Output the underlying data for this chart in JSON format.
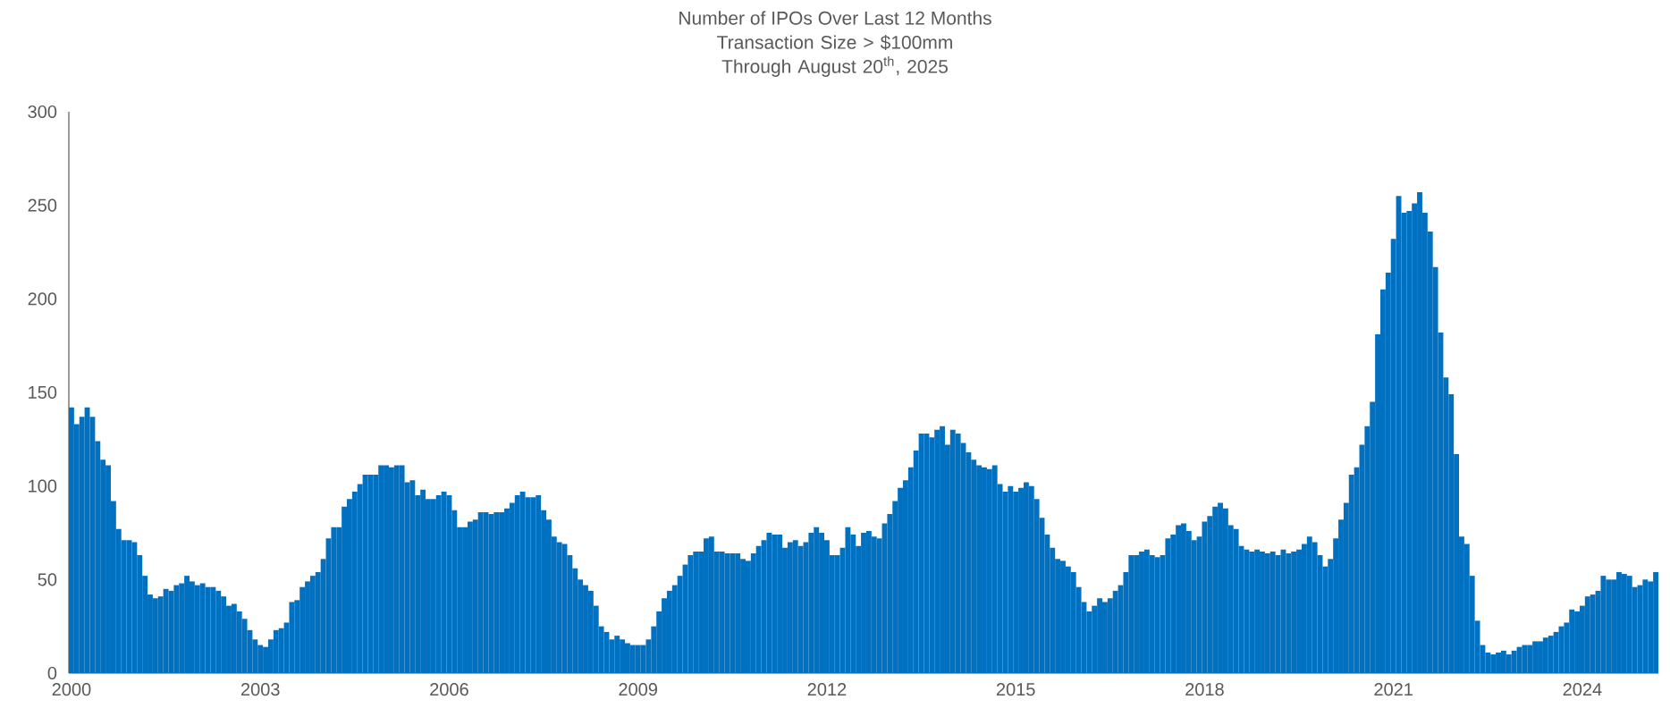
{
  "chart_data": {
    "type": "bar",
    "title": "Number of IPOs Over Last 12 Months",
    "subtitle": "Transaction Size > $100mm Through August 20$^{th}$, 2025",
    "color": "#0070c0",
    "ylim": [
      0,
      300
    ],
    "yticks": [
      0,
      50,
      100,
      150,
      200,
      250,
      300
    ],
    "categories": [
      "2000",
      null,
      null,
      null,
      null,
      null,
      null,
      null,
      null,
      null,
      null,
      null,
      null,
      null,
      null,
      null,
      null,
      null,
      null,
      null,
      null,
      null,
      null,
      null,
      null,
      null,
      null,
      null,
      null,
      null,
      null,
      null,
      null,
      null,
      null,
      null,
      "2003",
      null,
      null,
      null,
      null,
      null,
      null,
      null,
      null,
      null,
      null,
      null,
      null,
      null,
      null,
      null,
      null,
      null,
      null,
      null,
      null,
      null,
      null,
      null,
      null,
      null,
      null,
      null,
      null,
      null,
      null,
      null,
      null,
      null,
      null,
      null,
      "2006",
      null,
      null,
      null,
      null,
      null,
      null,
      null,
      null,
      null,
      null,
      null,
      null,
      null,
      null,
      null,
      null,
      null,
      null,
      null,
      null,
      null,
      null,
      null,
      null,
      null,
      null,
      null,
      null,
      null,
      null,
      null,
      null,
      null,
      null,
      null,
      "2009",
      null,
      null,
      null,
      null,
      null,
      null,
      null,
      null,
      null,
      null,
      null,
      null,
      null,
      null,
      null,
      null,
      null,
      null,
      null,
      null,
      null,
      null,
      null,
      null,
      null,
      null,
      null,
      null,
      null,
      null,
      null,
      null,
      null,
      null,
      null,
      "2012",
      null,
      null,
      null,
      null,
      null,
      null,
      null,
      null,
      null,
      null,
      null,
      null,
      null,
      null,
      null,
      null,
      null,
      null,
      null,
      null,
      null,
      null,
      null,
      null,
      null,
      null,
      null,
      null,
      null,
      null,
      null,
      null,
      null,
      null,
      null,
      "2015",
      null,
      null,
      null,
      null,
      null,
      null,
      null,
      null,
      null,
      null,
      null,
      null,
      null,
      null,
      null,
      null,
      null,
      null,
      null,
      null,
      null,
      null,
      null,
      null,
      null,
      null,
      null,
      null,
      null,
      null,
      null,
      null,
      null,
      null,
      null,
      "2018",
      null,
      null,
      null,
      null,
      null,
      null,
      null,
      null,
      null,
      null,
      null,
      null,
      null,
      null,
      null,
      null,
      null,
      null,
      null,
      null,
      null,
      null,
      null,
      null,
      null,
      null,
      null,
      null,
      null,
      null,
      null,
      null,
      null,
      null,
      null,
      "2021",
      null,
      null,
      null,
      null,
      null,
      null,
      null,
      null,
      null,
      null,
      null,
      null,
      null,
      null,
      null,
      null,
      null,
      null,
      null,
      null,
      null,
      null,
      null,
      null,
      null,
      null,
      null,
      null,
      null,
      null,
      null,
      null,
      null,
      null,
      null,
      "2024",
      null,
      null,
      null,
      null,
      null,
      null,
      null,
      null,
      null,
      null,
      null,
      null,
      null,
      null
    ],
    "values": [
      142,
      133,
      137,
      142,
      137,
      124,
      114,
      111,
      92,
      77,
      71,
      71,
      70,
      63,
      52,
      42,
      40,
      41,
      45,
      44,
      47,
      48,
      52,
      49,
      47,
      48,
      46,
      46,
      44,
      41,
      36,
      37,
      33,
      29,
      23,
      18,
      15,
      14,
      18,
      23,
      24,
      27,
      38,
      39,
      46,
      49,
      52,
      54,
      61,
      72,
      78,
      78,
      89,
      93,
      97,
      101,
      106,
      106,
      106,
      111,
      111,
      110,
      111,
      111,
      102,
      103,
      95,
      98,
      93,
      93,
      95,
      97,
      95,
      87,
      78,
      78,
      81,
      82,
      86,
      86,
      85,
      86,
      86,
      88,
      91,
      95,
      97,
      94,
      94,
      95,
      87,
      82,
      73,
      70,
      69,
      63,
      56,
      50,
      47,
      44,
      36,
      25,
      22,
      18,
      20,
      18,
      16,
      15,
      15,
      15,
      18,
      25,
      33,
      40,
      44,
      47,
      52,
      58,
      63,
      65,
      65,
      72,
      73,
      65,
      65,
      64,
      64,
      64,
      61,
      60,
      64,
      68,
      71,
      75,
      74,
      74,
      67,
      70,
      71,
      68,
      70,
      75,
      78,
      75,
      71,
      63,
      63,
      67,
      78,
      74,
      68,
      75,
      76,
      73,
      72,
      80,
      85,
      92,
      99,
      103,
      110,
      119,
      128,
      128,
      126,
      130,
      132,
      122,
      130,
      128,
      123,
      118,
      114,
      111,
      110,
      109,
      111,
      101,
      97,
      100,
      97,
      99,
      102,
      100,
      93,
      83,
      74,
      67,
      61,
      60,
      57,
      54,
      46,
      38,
      33,
      36,
      40,
      38,
      40,
      44,
      47,
      54,
      63,
      63,
      65,
      66,
      63,
      62,
      63,
      72,
      74,
      79,
      80,
      76,
      71,
      73,
      81,
      84,
      89,
      91,
      88,
      79,
      77,
      68,
      66,
      65,
      66,
      65,
      64,
      65,
      63,
      66,
      64,
      65,
      66,
      69,
      73,
      70,
      63,
      57,
      61,
      72,
      82,
      91,
      106,
      110,
      122,
      132,
      145,
      181,
      205,
      214,
      232,
      255,
      246,
      247,
      251,
      257,
      246,
      236,
      217,
      182,
      158,
      149,
      117,
      73,
      69,
      52,
      28,
      15,
      11,
      10,
      11,
      12,
      10,
      12,
      14,
      15,
      15,
      17,
      17,
      19,
      20,
      22,
      25,
      27,
      34,
      33,
      36,
      41,
      42,
      44,
      52,
      50,
      50,
      54,
      53,
      52,
      46,
      47,
      50,
      49,
      54
    ]
  }
}
